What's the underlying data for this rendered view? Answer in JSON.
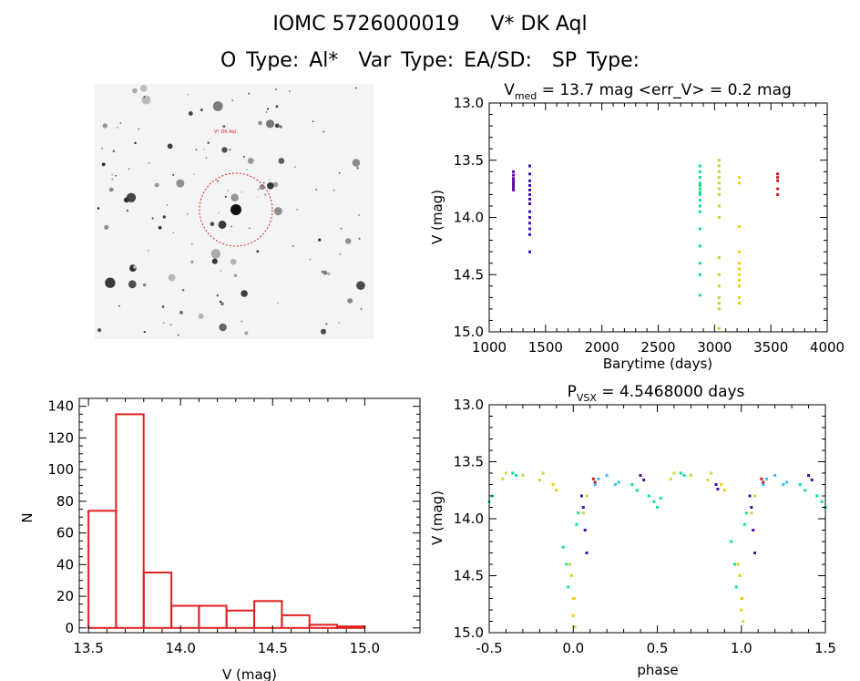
{
  "header": {
    "title_id": "IOMC 5726000019",
    "title_name": "V* DK Aql",
    "subtitle": "O Type: Al*  Var Type: EA/SD:  SP Type:"
  },
  "thumbnail": {
    "target_label": "V* DK Aql"
  },
  "chart_data": [
    {
      "type": "scatter",
      "title_prefix": "V",
      "title_sub": "med",
      "title_rest": " = 13.7 mag <err_V> = 0.2 mag",
      "xlabel": "Barytime (days)",
      "ylabel": "V (mag)",
      "xlim": [
        1000,
        4000
      ],
      "ylim": [
        15.0,
        13.0
      ],
      "xticks": [
        1000,
        1500,
        2000,
        2500,
        3000,
        3500,
        4000
      ],
      "yticks": [
        13.0,
        13.5,
        14.0,
        14.5,
        15.0
      ],
      "series": [
        {
          "color": "#5a0aa0",
          "x": [
            1215,
            1215,
            1215,
            1215,
            1215,
            1215,
            1215,
            1215
          ],
          "y": [
            13.6,
            13.63,
            13.66,
            13.68,
            13.7,
            13.72,
            13.74,
            13.76
          ]
        },
        {
          "color": "#3a10b0",
          "x": [
            1360,
            1360,
            1360,
            1360,
            1360,
            1360,
            1360,
            1360,
            1360,
            1360,
            1360,
            1360,
            1360,
            1360
          ],
          "y": [
            13.55,
            13.62,
            13.68,
            13.72,
            13.76,
            13.8,
            13.84,
            13.88,
            13.95,
            14.0,
            14.05,
            14.1,
            14.15,
            14.3
          ]
        },
        {
          "color": "#10e080",
          "x": [
            2870,
            2870,
            2870,
            2870,
            2870,
            2870,
            2870,
            2870,
            2870,
            2870,
            2870,
            2870,
            2870,
            2870,
            2870,
            2870
          ],
          "y": [
            13.55,
            13.6,
            13.65,
            13.7,
            13.72,
            13.75,
            13.78,
            13.8,
            13.85,
            13.9,
            13.95,
            14.1,
            14.25,
            14.4,
            14.5,
            14.68
          ]
        },
        {
          "color": "#b0e020",
          "x": [
            3040,
            3040,
            3040,
            3040,
            3040,
            3040,
            3040,
            3040,
            3040,
            3040,
            3040,
            3040,
            3040,
            3040,
            3040,
            3040
          ],
          "y": [
            13.5,
            13.55,
            13.6,
            13.65,
            13.7,
            13.75,
            13.8,
            13.9,
            14.0,
            14.35,
            14.5,
            14.6,
            14.7,
            14.75,
            14.8,
            14.97
          ]
        },
        {
          "color": "#f0d000",
          "x": [
            3220,
            3220,
            3220,
            3220,
            3220,
            3220,
            3220,
            3220,
            3220,
            3220,
            3220
          ],
          "y": [
            13.65,
            13.7,
            14.08,
            14.3,
            14.4,
            14.45,
            14.5,
            14.55,
            14.6,
            14.7,
            14.75
          ]
        },
        {
          "color": "#c02020",
          "x": [
            3560,
            3560,
            3560,
            3560,
            3560
          ],
          "y": [
            13.62,
            13.65,
            13.68,
            13.75,
            13.8
          ]
        }
      ]
    },
    {
      "type": "bar",
      "xlabel": "V (mag)",
      "ylabel": "N",
      "xlim": [
        13.45,
        15.3
      ],
      "ylim": [
        -3,
        145
      ],
      "xticks": [
        13.5,
        14.0,
        14.5,
        15.0
      ],
      "yticks": [
        0,
        20,
        40,
        60,
        80,
        100,
        120,
        140
      ],
      "bin_edges": [
        13.5,
        13.65,
        13.8,
        13.95,
        14.1,
        14.25,
        14.4,
        14.55,
        14.7,
        14.85,
        15.0,
        15.15
      ],
      "values": [
        74,
        135,
        35,
        14,
        14,
        11,
        17,
        8,
        2,
        1,
        0
      ],
      "color": "#e02020"
    },
    {
      "type": "scatter",
      "title_prefix": "P",
      "title_sub": "VSX",
      "title_rest": " = 4.5468000 days",
      "xlabel": "phase",
      "ylabel": "V (mag)",
      "xlim": [
        -0.5,
        1.5
      ],
      "ylim": [
        15.0,
        13.0
      ],
      "xticks": [
        -0.5,
        0.0,
        0.5,
        1.0,
        1.5
      ],
      "yticks": [
        13.0,
        13.5,
        14.0,
        14.5,
        15.0
      ],
      "series": [
        {
          "color": "#10e090",
          "x": [
            -0.5,
            -0.48,
            -0.36,
            -0.34,
            -0.06,
            -0.04,
            -0.03,
            0.02,
            0.03,
            0.35,
            0.38,
            0.45,
            0.48,
            0.5,
            0.52,
            0.64,
            0.66,
            0.94,
            0.96,
            0.97,
            1.02,
            1.03,
            1.35,
            1.38,
            1.45,
            1.48,
            1.5
          ],
          "y": [
            13.85,
            13.8,
            13.6,
            13.62,
            14.25,
            14.4,
            14.6,
            14.05,
            13.95,
            13.7,
            13.75,
            13.8,
            13.85,
            13.9,
            13.82,
            13.6,
            13.62,
            14.2,
            14.4,
            14.6,
            14.05,
            13.95,
            13.7,
            13.75,
            13.8,
            13.85,
            13.9
          ]
        },
        {
          "color": "#2ac0ff",
          "x": [
            0.13,
            0.15,
            0.2,
            0.25,
            0.27,
            1.13,
            1.15,
            1.2,
            1.25,
            1.27
          ],
          "y": [
            13.7,
            13.65,
            13.62,
            13.7,
            13.68,
            13.7,
            13.65,
            13.62,
            13.7,
            13.68
          ]
        },
        {
          "color": "#c0e030",
          "x": [
            -0.42,
            -0.4,
            -0.3,
            -0.2,
            -0.18,
            -0.02,
            0.0,
            0.01,
            0.06,
            0.08,
            0.58,
            0.6,
            0.7,
            0.8,
            0.82,
            0.98,
            1.0,
            1.01,
            1.06,
            1.08
          ],
          "y": [
            13.65,
            13.6,
            13.62,
            13.66,
            13.6,
            14.4,
            14.7,
            14.95,
            13.95,
            13.8,
            13.65,
            13.6,
            13.62,
            13.66,
            13.6,
            14.4,
            14.7,
            14.9,
            13.95,
            13.8
          ]
        },
        {
          "color": "#f0d000",
          "x": [
            -0.12,
            -0.1,
            -0.01,
            0.0,
            0.005,
            0.88,
            0.9,
            0.99,
            1.0,
            1.005
          ],
          "y": [
            13.7,
            13.75,
            14.5,
            14.85,
            14.7,
            13.7,
            13.75,
            14.5,
            14.8,
            14.7
          ]
        },
        {
          "color": "#4010a0",
          "x": [
            0.05,
            0.06,
            0.07,
            0.08,
            0.4,
            0.42,
            0.85,
            0.86,
            1.05,
            1.06,
            1.07,
            1.08,
            1.4,
            1.42
          ],
          "y": [
            13.8,
            13.9,
            14.1,
            14.3,
            13.62,
            13.66,
            13.7,
            13.74,
            13.8,
            13.9,
            14.1,
            14.3,
            13.62,
            13.66
          ]
        },
        {
          "color": "#c02020",
          "x": [
            0.12,
            0.13,
            1.12,
            1.13
          ],
          "y": [
            13.65,
            13.68,
            13.65,
            13.68
          ]
        }
      ]
    }
  ]
}
